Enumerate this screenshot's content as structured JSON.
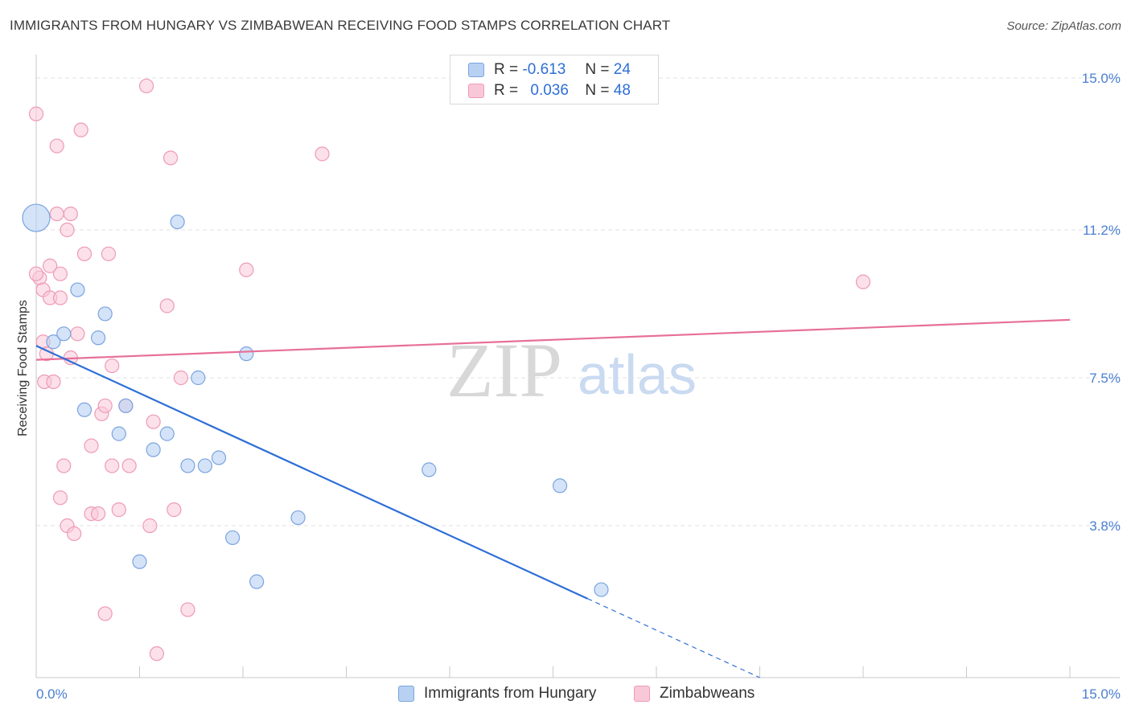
{
  "header": {
    "title": "IMMIGRANTS FROM HUNGARY VS ZIMBABWEAN RECEIVING FOOD STAMPS CORRELATION CHART",
    "source": "Source: ZipAtlas.com"
  },
  "watermark": {
    "zip": "ZIP",
    "atlas": "atlas"
  },
  "legend": {
    "rows": [
      {
        "r_label": "R =",
        "r_value": "-0.613",
        "n_label": "N =",
        "n_value": "24"
      },
      {
        "r_label": "R =",
        "r_value": "0.036",
        "n_label": "N =",
        "n_value": "48"
      }
    ]
  },
  "colors": {
    "blue_fill": "#b8d1f3",
    "blue_stroke": "#7aa4e0",
    "blue_line": "#2e6fd6",
    "pink_fill": "#f9c8d8",
    "pink_stroke": "#ee9ab6",
    "pink_line": "#e76f98",
    "grid": "#e2e2e2",
    "tick_text": "#4a7fd0"
  },
  "chart_data": {
    "type": "scatter",
    "title": "IMMIGRANTS FROM HUNGARY VS ZIMBABWEAN RECEIVING FOOD STAMPS CORRELATION CHART",
    "xlabel": "",
    "ylabel": "Receiving Food Stamps",
    "xlim": [
      0,
      15
    ],
    "ylim": [
      0,
      15.5
    ],
    "x_tick_labels": [
      "0.0%",
      "15.0%"
    ],
    "y_ticks": [
      3.8,
      7.5,
      11.2,
      15.0
    ],
    "y_tick_labels": [
      "3.8%",
      "7.5%",
      "11.2%",
      "15.0%"
    ],
    "grid": true,
    "legend_position": "bottom-center",
    "series": [
      {
        "name": "Immigrants from Hungary",
        "color": "#b8d1f3",
        "trend": {
          "x": [
            0.0,
            10.5
          ],
          "y": [
            8.3,
            0.0
          ],
          "solid_until_x": 8.0
        },
        "points": [
          {
            "x": 0.0,
            "y": 11.5,
            "big": true
          },
          {
            "x": 0.25,
            "y": 8.4
          },
          {
            "x": 0.4,
            "y": 8.6
          },
          {
            "x": 0.6,
            "y": 9.7
          },
          {
            "x": 0.7,
            "y": 6.7
          },
          {
            "x": 0.9,
            "y": 8.5
          },
          {
            "x": 1.0,
            "y": 9.1
          },
          {
            "x": 1.2,
            "y": 6.1
          },
          {
            "x": 1.3,
            "y": 6.8
          },
          {
            "x": 1.5,
            "y": 2.9
          },
          {
            "x": 1.7,
            "y": 5.7
          },
          {
            "x": 1.9,
            "y": 6.1
          },
          {
            "x": 2.05,
            "y": 11.4
          },
          {
            "x": 2.2,
            "y": 5.3
          },
          {
            "x": 2.35,
            "y": 7.5
          },
          {
            "x": 2.45,
            "y": 5.3
          },
          {
            "x": 2.65,
            "y": 5.5
          },
          {
            "x": 2.85,
            "y": 3.5
          },
          {
            "x": 3.05,
            "y": 8.1
          },
          {
            "x": 3.2,
            "y": 2.4
          },
          {
            "x": 3.8,
            "y": 4.0
          },
          {
            "x": 5.7,
            "y": 5.2
          },
          {
            "x": 7.6,
            "y": 4.8
          },
          {
            "x": 8.2,
            "y": 2.2
          }
        ]
      },
      {
        "name": "Zimbabweans",
        "color": "#f9c8d8",
        "trend": {
          "x": [
            0.0,
            15.0
          ],
          "y": [
            7.95,
            8.95
          ]
        },
        "points": [
          {
            "x": 0.0,
            "y": 14.1
          },
          {
            "x": 0.05,
            "y": 10.0
          },
          {
            "x": 0.1,
            "y": 9.7
          },
          {
            "x": 0.1,
            "y": 8.4
          },
          {
            "x": 0.12,
            "y": 7.4
          },
          {
            "x": 0.15,
            "y": 8.1
          },
          {
            "x": 0.2,
            "y": 10.3
          },
          {
            "x": 0.2,
            "y": 9.5
          },
          {
            "x": 0.25,
            "y": 7.4
          },
          {
            "x": 0.3,
            "y": 13.3
          },
          {
            "x": 0.3,
            "y": 11.6
          },
          {
            "x": 0.35,
            "y": 10.1
          },
          {
            "x": 0.35,
            "y": 9.5
          },
          {
            "x": 0.35,
            "y": 4.5
          },
          {
            "x": 0.4,
            "y": 5.3
          },
          {
            "x": 0.45,
            "y": 3.8
          },
          {
            "x": 0.45,
            "y": 11.2
          },
          {
            "x": 0.5,
            "y": 8.0
          },
          {
            "x": 0.5,
            "y": 11.6
          },
          {
            "x": 0.55,
            "y": 3.6
          },
          {
            "x": 0.6,
            "y": 8.6
          },
          {
            "x": 0.65,
            "y": 13.7
          },
          {
            "x": 0.7,
            "y": 10.6
          },
          {
            "x": 0.8,
            "y": 5.8
          },
          {
            "x": 0.8,
            "y": 4.1
          },
          {
            "x": 0.9,
            "y": 4.1
          },
          {
            "x": 0.95,
            "y": 6.6
          },
          {
            "x": 1.0,
            "y": 6.8
          },
          {
            "x": 1.0,
            "y": 1.6
          },
          {
            "x": 1.05,
            "y": 10.6
          },
          {
            "x": 1.1,
            "y": 7.8
          },
          {
            "x": 1.1,
            "y": 5.3
          },
          {
            "x": 1.2,
            "y": 4.2
          },
          {
            "x": 1.3,
            "y": 6.8
          },
          {
            "x": 1.35,
            "y": 5.3
          },
          {
            "x": 1.6,
            "y": 14.8
          },
          {
            "x": 1.65,
            "y": 3.8
          },
          {
            "x": 1.7,
            "y": 6.4
          },
          {
            "x": 1.75,
            "y": 0.6
          },
          {
            "x": 1.9,
            "y": 9.3
          },
          {
            "x": 1.95,
            "y": 13.0
          },
          {
            "x": 2.0,
            "y": 4.2
          },
          {
            "x": 2.1,
            "y": 7.5
          },
          {
            "x": 2.2,
            "y": 1.7
          },
          {
            "x": 3.05,
            "y": 10.2
          },
          {
            "x": 4.15,
            "y": 13.1
          },
          {
            "x": 12.0,
            "y": 9.9
          },
          {
            "x": 0.0,
            "y": 10.1
          }
        ]
      }
    ]
  },
  "bottom_legend": {
    "items": [
      {
        "label": "Immigrants from Hungary"
      },
      {
        "label": "Zimbabweans"
      }
    ]
  }
}
